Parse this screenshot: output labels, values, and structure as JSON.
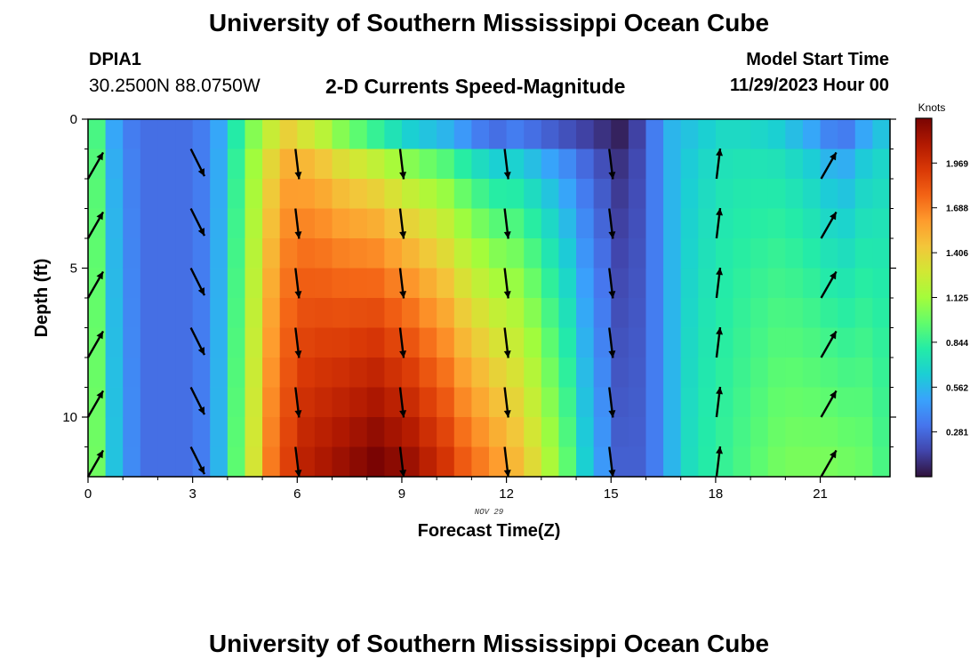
{
  "header": {
    "title": "University of Southern Mississippi Ocean Cube",
    "station_id": "DPIA1",
    "station_coords": "30.2500N  88.0750W",
    "subtitle": "2-D Currents Speed-Magnitude",
    "start_time_label": "Model Start Time",
    "start_time_value": "11/29/2023 Hour 00"
  },
  "footer": {
    "title": "University of Southern Mississippi Ocean Cube"
  },
  "chart_data": {
    "type": "heatmap",
    "xlabel": "Forecast Time(Z)",
    "ylabel": "Depth (ft)",
    "date_label": "NOV 29",
    "x_ticks": [
      "0",
      "3",
      "6",
      "9",
      "12",
      "15",
      "18",
      "21"
    ],
    "y_ticks": [
      "0",
      "5",
      "10"
    ],
    "xlim": [
      0,
      23
    ],
    "ylim": [
      0,
      12
    ],
    "y_reversed": true,
    "colorbar": {
      "label": "Knots",
      "ticks": [
        "1.969",
        "1.688",
        "1.406",
        "1.125",
        "0.844",
        "0.562",
        "0.281"
      ],
      "range": [
        0,
        2.25
      ],
      "colors": [
        "#30123b",
        "#4145ab",
        "#4675ed",
        "#39a2fc",
        "#1bcfd4",
        "#24eca6",
        "#61fc6c",
        "#a4fc3b",
        "#d1e834",
        "#f3c63a",
        "#fe9b2d",
        "#f36315",
        "#d93806",
        "#b11901",
        "#7a0403"
      ]
    },
    "speed_profile_hours": [
      0,
      0.5,
      1,
      1.5,
      2,
      2.5,
      3,
      3.5,
      4,
      4.5,
      5,
      5.5,
      6,
      6.5,
      7,
      7.5,
      8,
      8.5,
      9,
      9.5,
      10,
      10.5,
      11,
      11.5,
      12,
      12.5,
      13,
      13.5,
      14,
      14.5,
      15,
      15.5,
      16,
      16.5,
      17,
      17.5,
      18,
      18.5,
      19,
      19.5,
      20,
      20.5,
      21,
      21.5,
      22,
      22.5
    ],
    "surface_speed": [
      0.9,
      0.5,
      0.35,
      0.3,
      0.3,
      0.3,
      0.35,
      0.5,
      0.8,
      1.05,
      1.25,
      1.4,
      1.3,
      1.2,
      1.05,
      0.95,
      0.85,
      0.75,
      0.65,
      0.6,
      0.55,
      0.45,
      0.35,
      0.3,
      0.35,
      0.3,
      0.25,
      0.2,
      0.15,
      0.1,
      0.05,
      0.15,
      0.35,
      0.55,
      0.6,
      0.65,
      0.7,
      0.7,
      0.68,
      0.65,
      0.58,
      0.5,
      0.38,
      0.35,
      0.5,
      0.6
    ],
    "bottom_speed": [
      1.0,
      0.6,
      0.4,
      0.3,
      0.3,
      0.3,
      0.35,
      0.55,
      0.95,
      1.3,
      1.7,
      1.9,
      2.05,
      2.1,
      2.15,
      2.2,
      2.25,
      2.2,
      2.15,
      2.05,
      1.95,
      1.8,
      1.7,
      1.6,
      1.5,
      1.35,
      1.15,
      0.95,
      0.65,
      0.45,
      0.25,
      0.25,
      0.35,
      0.55,
      0.72,
      0.8,
      0.85,
      0.9,
      0.95,
      1.0,
      1.02,
      1.02,
      1.02,
      1.0,
      0.98,
      0.9
    ],
    "vectors": {
      "hours": [
        0,
        3,
        6,
        9,
        12,
        15,
        18,
        21
      ],
      "depths": [
        2,
        4,
        6,
        8,
        10,
        12
      ],
      "direction": [
        "northeast",
        "south-southeast",
        "south",
        "south",
        "south",
        "south",
        "north",
        "northeast"
      ]
    }
  }
}
